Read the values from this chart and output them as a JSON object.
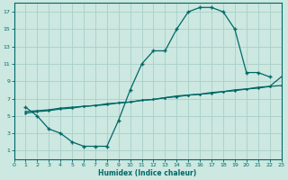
{
  "bg_color": "#cce8e0",
  "grid_color": "#a8cfc8",
  "line_color": "#006868",
  "xlabel": "Humidex (Indice chaleur)",
  "xlim": [
    0,
    23
  ],
  "ylim": [
    0,
    18
  ],
  "xticks": [
    0,
    1,
    2,
    3,
    4,
    5,
    6,
    7,
    8,
    9,
    10,
    11,
    12,
    13,
    14,
    15,
    16,
    17,
    18,
    19,
    20,
    21,
    22,
    23
  ],
  "yticks": [
    1,
    3,
    5,
    7,
    9,
    11,
    13,
    15,
    17
  ],
  "curve1_x": [
    1,
    2,
    3,
    4,
    5,
    6,
    7,
    8,
    9,
    10,
    11,
    12,
    13,
    14,
    15,
    16,
    17,
    18,
    19,
    20,
    21,
    22
  ],
  "curve1_y": [
    6,
    5,
    3.5,
    3,
    2,
    1.5,
    1.5,
    1.5,
    4.5,
    8,
    11,
    12.5,
    12.5,
    15,
    17,
    17.5,
    17.5,
    17,
    15,
    10,
    10,
    9.5
  ],
  "curve2_x": [
    1,
    2,
    3,
    4,
    5,
    6,
    7,
    8,
    9,
    10,
    11,
    12,
    13,
    14,
    15,
    16,
    17,
    18,
    19,
    20,
    21,
    22,
    23
  ],
  "curve2_y": [
    5.5,
    5.6,
    5.7,
    5.9,
    6.0,
    6.1,
    6.2,
    6.4,
    6.5,
    6.6,
    6.8,
    6.9,
    7.1,
    7.2,
    7.4,
    7.5,
    7.6,
    7.8,
    7.9,
    8.1,
    8.2,
    8.4,
    8.5
  ],
  "curve3_x": [
    1,
    2,
    3,
    4,
    5,
    6,
    7,
    8,
    9,
    10,
    11,
    12,
    13,
    14,
    15,
    16,
    17,
    18,
    19,
    20,
    21,
    22,
    23
  ],
  "curve3_y": [
    5.3,
    5.5,
    5.6,
    5.8,
    5.9,
    6.1,
    6.2,
    6.3,
    6.5,
    6.6,
    6.8,
    6.9,
    7.1,
    7.3,
    7.4,
    7.5,
    7.7,
    7.8,
    8.0,
    8.1,
    8.3,
    8.4,
    9.5
  ]
}
